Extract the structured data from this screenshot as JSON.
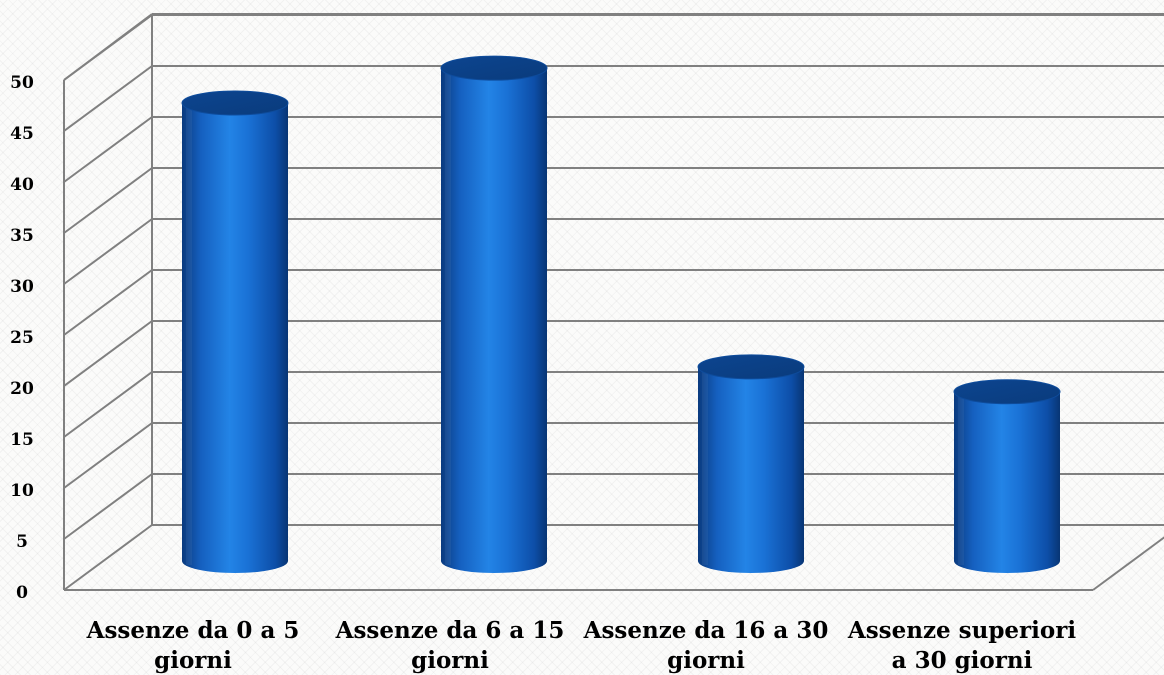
{
  "chart_data": {
    "type": "bar",
    "style": "3d-cylinder",
    "categories": [
      [
        "Assenze da 0 a 5",
        "giorni"
      ],
      [
        "Assenze da 6 a 15",
        "giorni"
      ],
      [
        "Assenze da 16 a 30",
        "giorni"
      ],
      [
        "Assenze superiori",
        "a 30 giorni"
      ]
    ],
    "values": [
      46,
      49.5,
      19.5,
      17
    ],
    "yticks": [
      "0",
      "5",
      "10",
      "15",
      "20",
      "25",
      "30",
      "35",
      "40",
      "45",
      "50"
    ],
    "ylim": [
      0,
      50
    ],
    "title": "",
    "xlabel": "",
    "ylabel": "",
    "grid": true,
    "legend": "none",
    "colors": {
      "bar_main": "#1a72d6",
      "bar_dark": "#0b3f86",
      "bar_light": "#3f97ef",
      "grid": "#808080"
    }
  }
}
